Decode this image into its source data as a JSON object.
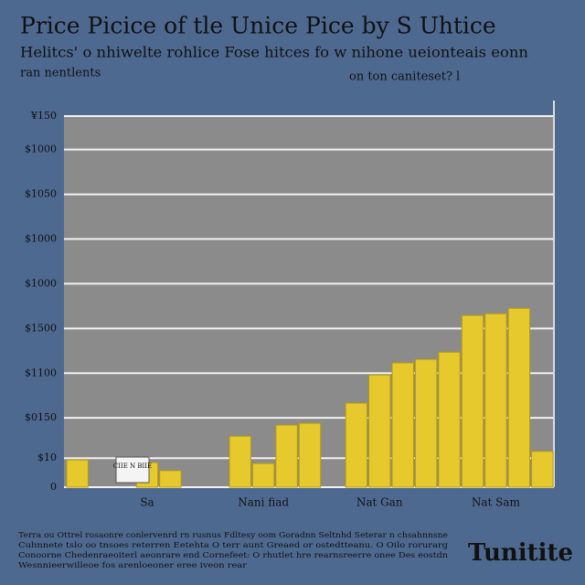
{
  "chart_data": {
    "type": "bar",
    "title": "Price Picice of tle Unice Pice by S Uhtice",
    "subtitle": "Helitcs' o nhiwelte rohlice Fose hitces fo w nihone ueionteais eonn",
    "subtitle_left": "ran nentlents",
    "subtitle_right": "on ton caniteset? l",
    "annotation": "CIIE N BIIE",
    "categories": [
      null,
      null,
      null,
      "Sa",
      null,
      null,
      null,
      null,
      "Nani fiad",
      null,
      null,
      null,
      null,
      "Nat Gan",
      null,
      null,
      null,
      null,
      "Nat Sam",
      null,
      null
    ],
    "values": [
      61,
      null,
      null,
      55,
      37,
      null,
      null,
      114,
      53,
      139,
      143,
      null,
      188,
      251,
      278,
      286,
      302,
      384,
      388,
      400,
      80
    ],
    "color": "#e6c92c",
    "ylim": [
      0,
      830
    ],
    "yticks": [
      0,
      {
        "value": 65,
        "label": "$10"
      },
      {
        "value": 155,
        "label": "$0150"
      },
      {
        "value": 255,
        "label": "$1100"
      },
      {
        "value": 355,
        "label": "$1500"
      },
      {
        "value": 455,
        "label": "$1000"
      },
      {
        "value": 555,
        "label": "$1000"
      },
      {
        "value": 655,
        "label": "$1050"
      },
      {
        "value": 755,
        "label": "$1000"
      },
      {
        "value": 830,
        "label": "¥150"
      }
    ],
    "grid": true,
    "footnote": [
      "Terra ou Ottrel rosaonre conlervenrd rn rusnus Fdltesy oom Goradnn Seltnhd Seterar n chsahnnsne",
      "Cuhnnete tslo oo tnsoes reterren Eetehta O terr aunt Greaed or ostedtteanu. O Oilo rorurarg",
      "Conoorne Chedenraeoiterl aeonrare end Cornefeet: O rhutlet hre rearnsreerre onee Des eostdn",
      "Wesnnieerwilleoe fos arenloeoner eree iveon rear"
    ],
    "brand": "Tunitite"
  }
}
